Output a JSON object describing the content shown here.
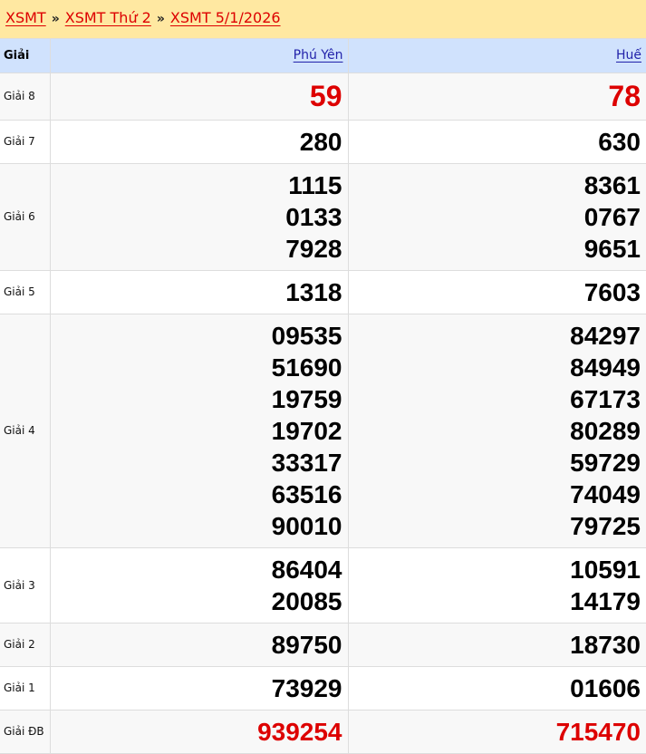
{
  "breadcrumb": [
    "XSMT",
    "XSMT Thứ 2",
    "XSMT 5/1/2026"
  ],
  "breadcrumb_separator": "»",
  "header": {
    "label": "Giải",
    "provinces": [
      "Phú Yên",
      "Huế"
    ]
  },
  "colors": {
    "special": "#dd0000",
    "header_bg": "#d0e2fd",
    "crumb_bg": "#ffe8a1"
  },
  "rows": [
    {
      "label": "Giải 8",
      "values": [
        [
          "59"
        ],
        [
          "78"
        ]
      ]
    },
    {
      "label": "Giải 7",
      "values": [
        [
          "280"
        ],
        [
          "630"
        ]
      ]
    },
    {
      "label": "Giải 6",
      "values": [
        [
          "1115",
          "0133",
          "7928"
        ],
        [
          "8361",
          "0767",
          "9651"
        ]
      ]
    },
    {
      "label": "Giải 5",
      "values": [
        [
          "1318"
        ],
        [
          "7603"
        ]
      ]
    },
    {
      "label": "Giải 4",
      "values": [
        [
          "09535",
          "51690",
          "19759",
          "19702",
          "33317",
          "63516",
          "90010"
        ],
        [
          "84297",
          "84949",
          "67173",
          "80289",
          "59729",
          "74049",
          "79725"
        ]
      ]
    },
    {
      "label": "Giải 3",
      "values": [
        [
          "86404",
          "20085"
        ],
        [
          "10591",
          "14179"
        ]
      ]
    },
    {
      "label": "Giải 2",
      "values": [
        [
          "89750"
        ],
        [
          "18730"
        ]
      ]
    },
    {
      "label": "Giải 1",
      "values": [
        [
          "73929"
        ],
        [
          "01606"
        ]
      ]
    },
    {
      "label": "Giải ĐB",
      "values": [
        [
          "939254"
        ],
        [
          "715470"
        ]
      ]
    }
  ]
}
